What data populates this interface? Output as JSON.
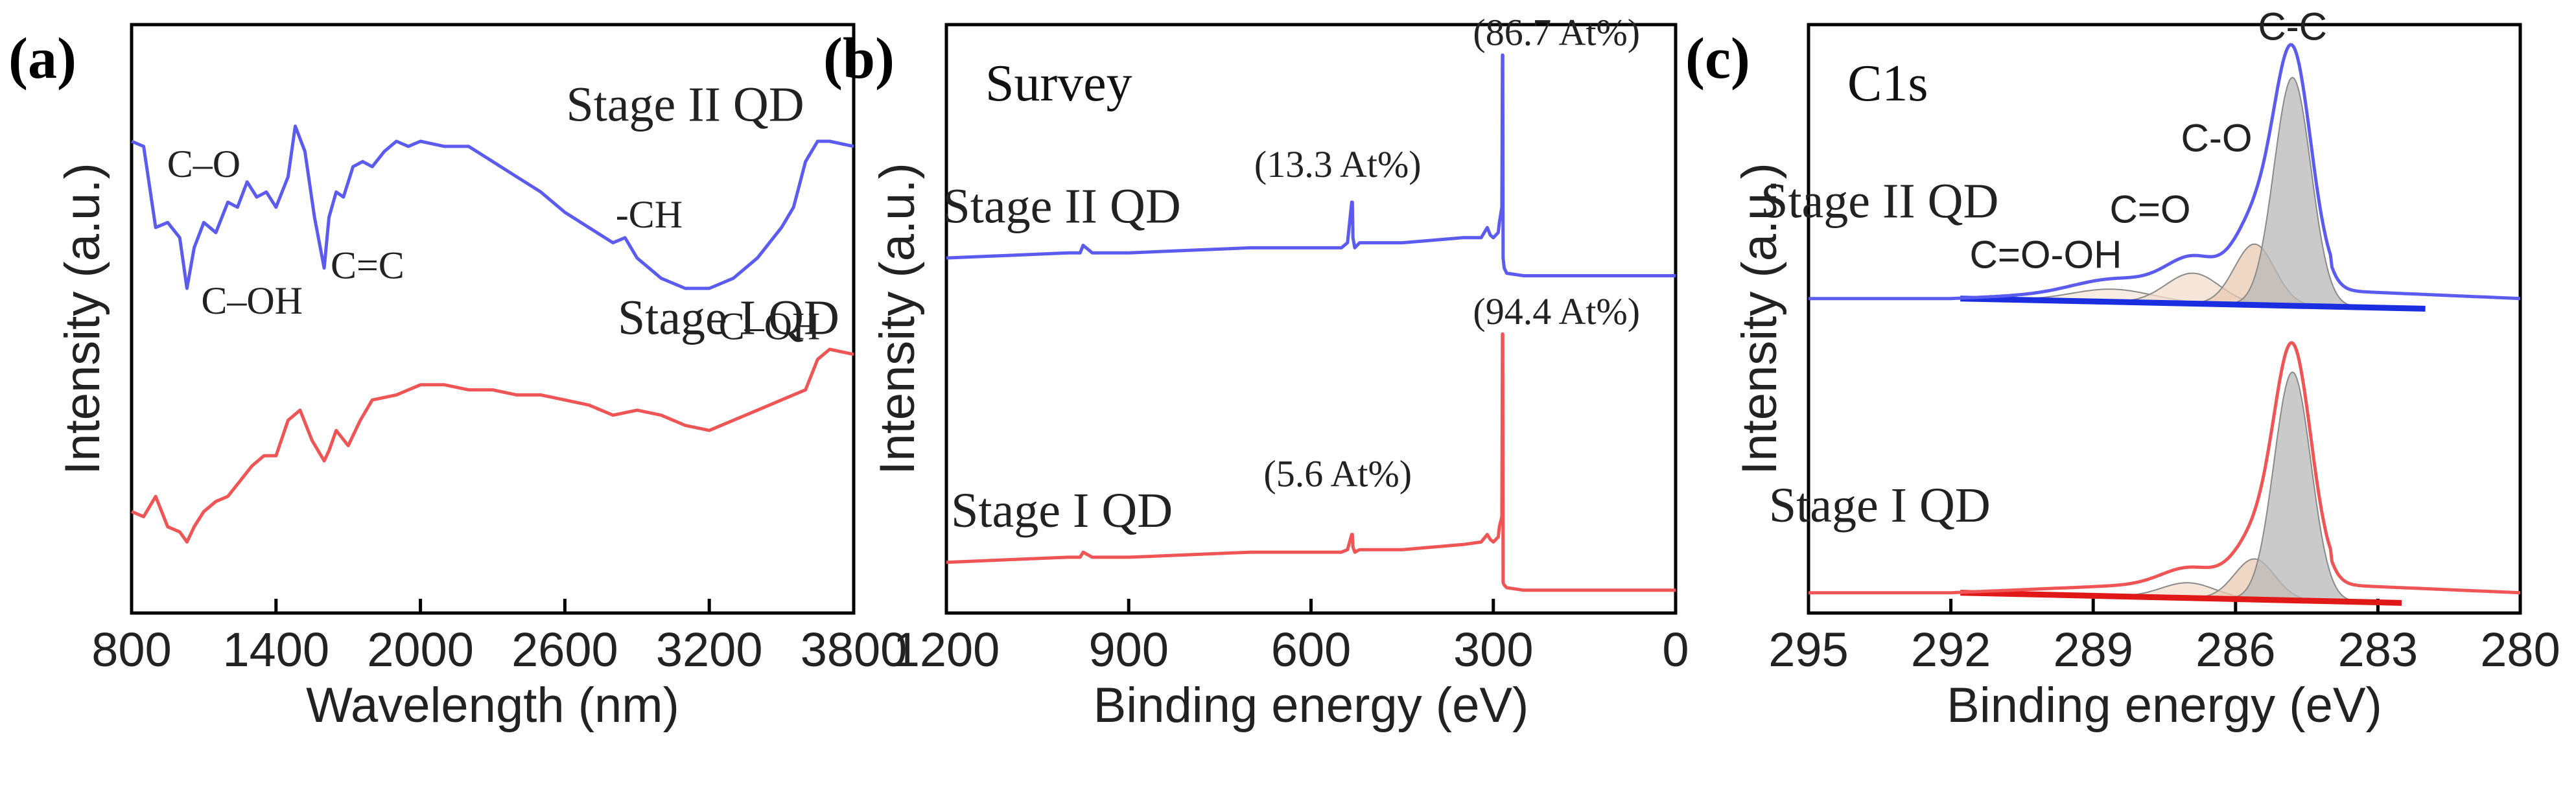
{
  "chart_data": [
    {
      "type": "line",
      "panel_label": "(a)",
      "xlabel": "Wavelength (nm)",
      "ylabel": "Intensity (a.u.)",
      "xlim": [
        800,
        3800
      ],
      "xticks": [
        "800",
        "1400",
        "2000",
        "2600",
        "3200",
        "3800"
      ],
      "ylim": [
        0,
        1.16
      ],
      "yticks_shown": false,
      "series": [
        {
          "name": "Stage II QD",
          "color": "#5b5bf0",
          "x": [
            800,
            850,
            900,
            950,
            1000,
            1030,
            1060,
            1100,
            1150,
            1200,
            1240,
            1280,
            1320,
            1360,
            1400,
            1450,
            1480,
            1520,
            1560,
            1600,
            1620,
            1650,
            1680,
            1720,
            1760,
            1800,
            1850,
            1900,
            1950,
            2000,
            2100,
            2200,
            2300,
            2400,
            2500,
            2600,
            2700,
            2800,
            2850,
            2900,
            3000,
            3100,
            3200,
            3300,
            3400,
            3500,
            3550,
            3600,
            3650,
            3700,
            3800
          ],
          "y": [
            0.93,
            0.92,
            0.76,
            0.77,
            0.74,
            0.64,
            0.72,
            0.77,
            0.75,
            0.81,
            0.8,
            0.85,
            0.82,
            0.83,
            0.8,
            0.86,
            0.96,
            0.91,
            0.78,
            0.68,
            0.78,
            0.83,
            0.82,
            0.88,
            0.89,
            0.88,
            0.91,
            0.93,
            0.92,
            0.93,
            0.92,
            0.92,
            0.89,
            0.86,
            0.83,
            0.79,
            0.76,
            0.73,
            0.74,
            0.7,
            0.66,
            0.64,
            0.64,
            0.66,
            0.7,
            0.76,
            0.8,
            0.89,
            0.93,
            0.93,
            0.92
          ]
        },
        {
          "name": "Stage I QD",
          "color": "#f05555",
          "x": [
            800,
            850,
            900,
            950,
            1000,
            1030,
            1060,
            1100,
            1150,
            1200,
            1250,
            1300,
            1350,
            1400,
            1450,
            1500,
            1550,
            1600,
            1620,
            1650,
            1700,
            1750,
            1800,
            1900,
            2000,
            2100,
            2200,
            2300,
            2400,
            2500,
            2600,
            2700,
            2800,
            2900,
            3000,
            3100,
            3200,
            3300,
            3400,
            3500,
            3600,
            3650,
            3700,
            3800
          ],
          "y": [
            0.2,
            0.19,
            0.23,
            0.17,
            0.16,
            0.14,
            0.17,
            0.2,
            0.22,
            0.23,
            0.26,
            0.29,
            0.31,
            0.31,
            0.38,
            0.4,
            0.34,
            0.3,
            0.32,
            0.36,
            0.33,
            0.38,
            0.42,
            0.43,
            0.45,
            0.45,
            0.44,
            0.44,
            0.43,
            0.43,
            0.42,
            0.41,
            0.39,
            0.4,
            0.39,
            0.37,
            0.36,
            0.38,
            0.4,
            0.42,
            0.44,
            0.5,
            0.52,
            0.51
          ]
        }
      ],
      "annotations": [
        {
          "text": "C–O",
          "x": 1100,
          "y": 0.86
        },
        {
          "text": "C–OH",
          "x": 1300,
          "y": 0.59
        },
        {
          "text": "C=C",
          "x": 1780,
          "y": 0.66
        },
        {
          "text": "-CH",
          "x": 2950,
          "y": 0.76
        },
        {
          "text": "C–OH",
          "x": 3450,
          "y": 0.54
        },
        {
          "text": "Stage II QD",
          "x": 3100,
          "y": 0.97
        },
        {
          "text": "Stage I QD",
          "x": 3280,
          "y": 0.55
        }
      ]
    },
    {
      "type": "line",
      "panel_label": "(b)",
      "title": "Survey",
      "xlabel": "Binding energy (eV)",
      "ylabel": "Intensity (a.u.)",
      "xlim": [
        1200,
        0
      ],
      "xticks": [
        "1200",
        "900",
        "600",
        "300",
        "0"
      ],
      "ylim": [
        0,
        1.16
      ],
      "yticks_shown": false,
      "series": [
        {
          "name": "Stage II QD",
          "color": "#5b5bf0",
          "x": [
            1200,
            1100,
            1000,
            980,
            975,
            960,
            900,
            800,
            700,
            600,
            550,
            540,
            533,
            532,
            531,
            528,
            520,
            450,
            400,
            350,
            320,
            310,
            305,
            300,
            292,
            290,
            286,
            285,
            284.5,
            284,
            282,
            278,
            250,
            200,
            100,
            0
          ],
          "y": [
            0.7,
            0.705,
            0.71,
            0.71,
            0.725,
            0.71,
            0.71,
            0.715,
            0.72,
            0.72,
            0.72,
            0.73,
            0.81,
            0.81,
            0.74,
            0.72,
            0.73,
            0.73,
            0.735,
            0.74,
            0.74,
            0.76,
            0.745,
            0.74,
            0.75,
            0.77,
            0.8,
            1.1,
            1.1,
            0.7,
            0.68,
            0.67,
            0.665,
            0.665,
            0.665,
            0.665
          ]
        },
        {
          "name": "Stage I QD",
          "color": "#f05555",
          "x": [
            1200,
            1100,
            1000,
            980,
            975,
            960,
            900,
            800,
            700,
            600,
            550,
            540,
            533,
            532,
            531,
            528,
            520,
            450,
            400,
            350,
            320,
            310,
            305,
            300,
            292,
            290,
            286,
            285,
            284.5,
            284,
            282,
            278,
            250,
            200,
            100,
            0
          ],
          "y": [
            0.1,
            0.105,
            0.11,
            0.11,
            0.12,
            0.11,
            0.11,
            0.115,
            0.12,
            0.12,
            0.12,
            0.125,
            0.155,
            0.155,
            0.13,
            0.12,
            0.125,
            0.125,
            0.13,
            0.135,
            0.14,
            0.155,
            0.145,
            0.14,
            0.15,
            0.17,
            0.19,
            0.55,
            0.55,
            0.06,
            0.055,
            0.05,
            0.045,
            0.045,
            0.045,
            0.045
          ]
        }
      ],
      "annotations": [
        {
          "text": "Stage II QD",
          "x": 1010,
          "y": 0.77
        },
        {
          "text": "Stage I QD",
          "x": 1010,
          "y": 0.17
        },
        {
          "text": "(86.7 At%)",
          "x": 196,
          "y": 1.12
        },
        {
          "text": "(13.3 At%)",
          "x": 556,
          "y": 0.86
        },
        {
          "text": "(94.4 At%)",
          "x": 196,
          "y": 0.57
        },
        {
          "text": "(5.6 At%)",
          "x": 556,
          "y": 0.25
        }
      ]
    },
    {
      "type": "line",
      "panel_label": "(c)",
      "title": "C1s",
      "xlabel": "Binding energy (eV)",
      "ylabel": "Intensity (a.u.)",
      "xlim": [
        295,
        280
      ],
      "xticks": [
        "295",
        "292",
        "289",
        "286",
        "283",
        "280"
      ],
      "ylim": [
        0,
        1.16
      ],
      "yticks_shown": false,
      "series": [
        {
          "name": "Stage II QD",
          "color": "#5b5bf0",
          "offset": 0.62,
          "baseline": {
            "from_x": 291.8,
            "from_y": 0.62,
            "to_x": 282,
            "to_y": 0.6,
            "color": "#1a2ee0"
          },
          "components": [
            {
              "label": "C-C",
              "center": 284.8,
              "height": 0.45,
              "width": 0.55
            },
            {
              "label": "C-O",
              "center": 285.6,
              "height": 0.12,
              "width": 0.6
            },
            {
              "label": "C=O",
              "center": 286.9,
              "height": 0.06,
              "width": 0.8
            },
            {
              "label": "C=O-OH",
              "center": 288.6,
              "height": 0.025,
              "width": 1.2
            }
          ]
        },
        {
          "name": "Stage I QD",
          "color": "#f05555",
          "offset": 0.04,
          "baseline": {
            "from_x": 291.8,
            "from_y": 0.04,
            "to_x": 282.5,
            "to_y": 0.02,
            "color": "#e01818"
          },
          "components": [
            {
              "label": "C-C",
              "center": 284.8,
              "height": 0.45,
              "width": 0.55
            },
            {
              "label": "C-O",
              "center": 285.6,
              "height": 0.08,
              "width": 0.6
            },
            {
              "label": "C=O",
              "center": 287.0,
              "height": 0.03,
              "width": 0.8
            }
          ]
        }
      ],
      "annotations": [
        {
          "text": "C-C",
          "x": 284.8,
          "y": 1.13
        },
        {
          "text": "C-O",
          "x": 286.4,
          "y": 0.91
        },
        {
          "text": "C=O",
          "x": 287.8,
          "y": 0.77
        },
        {
          "text": "C=O-OH",
          "x": 290.0,
          "y": 0.68
        },
        {
          "text": "Stage II QD",
          "x": 293.5,
          "y": 0.78
        },
        {
          "text": "Stage I QD",
          "x": 293.5,
          "y": 0.18
        }
      ]
    }
  ]
}
